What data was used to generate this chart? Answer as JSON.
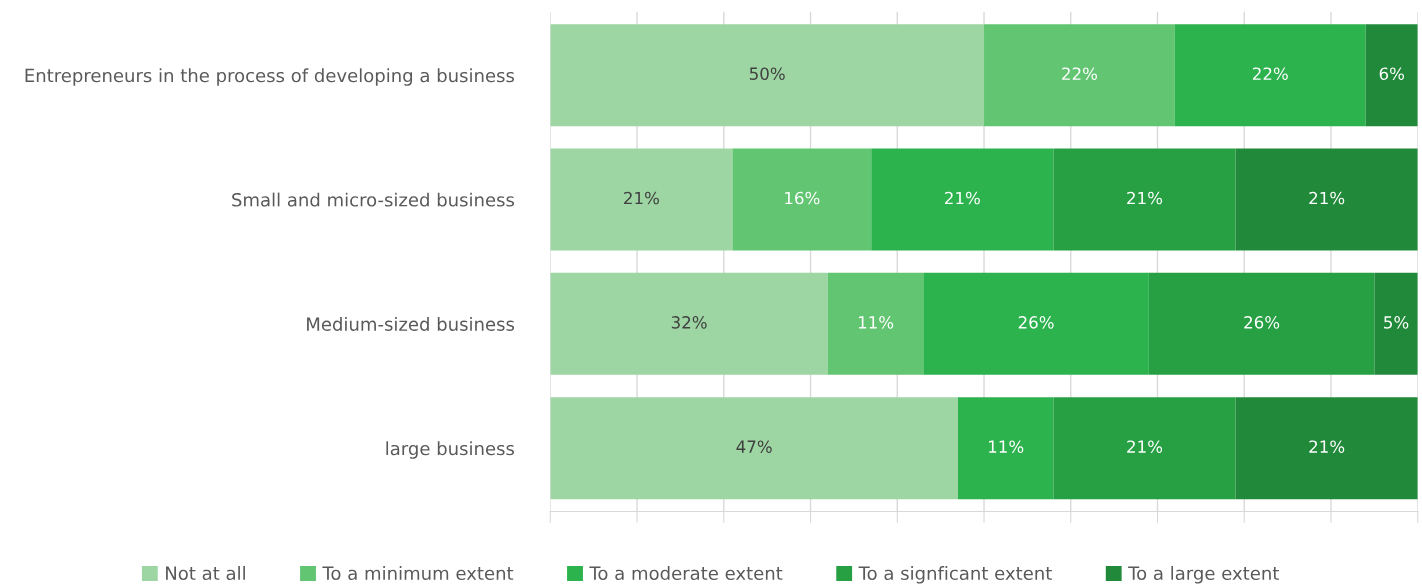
{
  "chart_data": {
    "type": "bar",
    "orientation": "horizontal",
    "stacked": true,
    "categories": [
      "Entrepreneurs in the process of developing a business",
      "Small and micro-sized business",
      "Medium-sized business",
      "large business"
    ],
    "series": [
      {
        "name": "Not at all",
        "color": "#9dd6a3",
        "values": [
          50,
          21,
          32,
          47
        ],
        "value_labels": [
          "50%",
          "21%",
          "32%",
          "47%"
        ]
      },
      {
        "name": "To a minimum extent",
        "color": "#62c572",
        "values": [
          22,
          16,
          11,
          null
        ],
        "value_labels": [
          "22%",
          "16%",
          "11%",
          null
        ]
      },
      {
        "name": "To a moderate extent",
        "color": "#2db34e",
        "values": [
          22,
          21,
          26,
          11
        ],
        "value_labels": [
          "22%",
          "21%",
          "26%",
          "11%"
        ]
      },
      {
        "name": "To a signficant extent",
        "color": "#27a043",
        "values": [
          null,
          21,
          26,
          21
        ],
        "value_labels": [
          null,
          "21%",
          "26%",
          "21%"
        ]
      },
      {
        "name": "To a large extent",
        "color": "#218a3a",
        "values": [
          6,
          21,
          5,
          21
        ],
        "value_labels": [
          "6%",
          "21%",
          "5%",
          "21%"
        ]
      }
    ],
    "tick_labels": "y",
    "grid": "x",
    "legend": "bottom"
  }
}
